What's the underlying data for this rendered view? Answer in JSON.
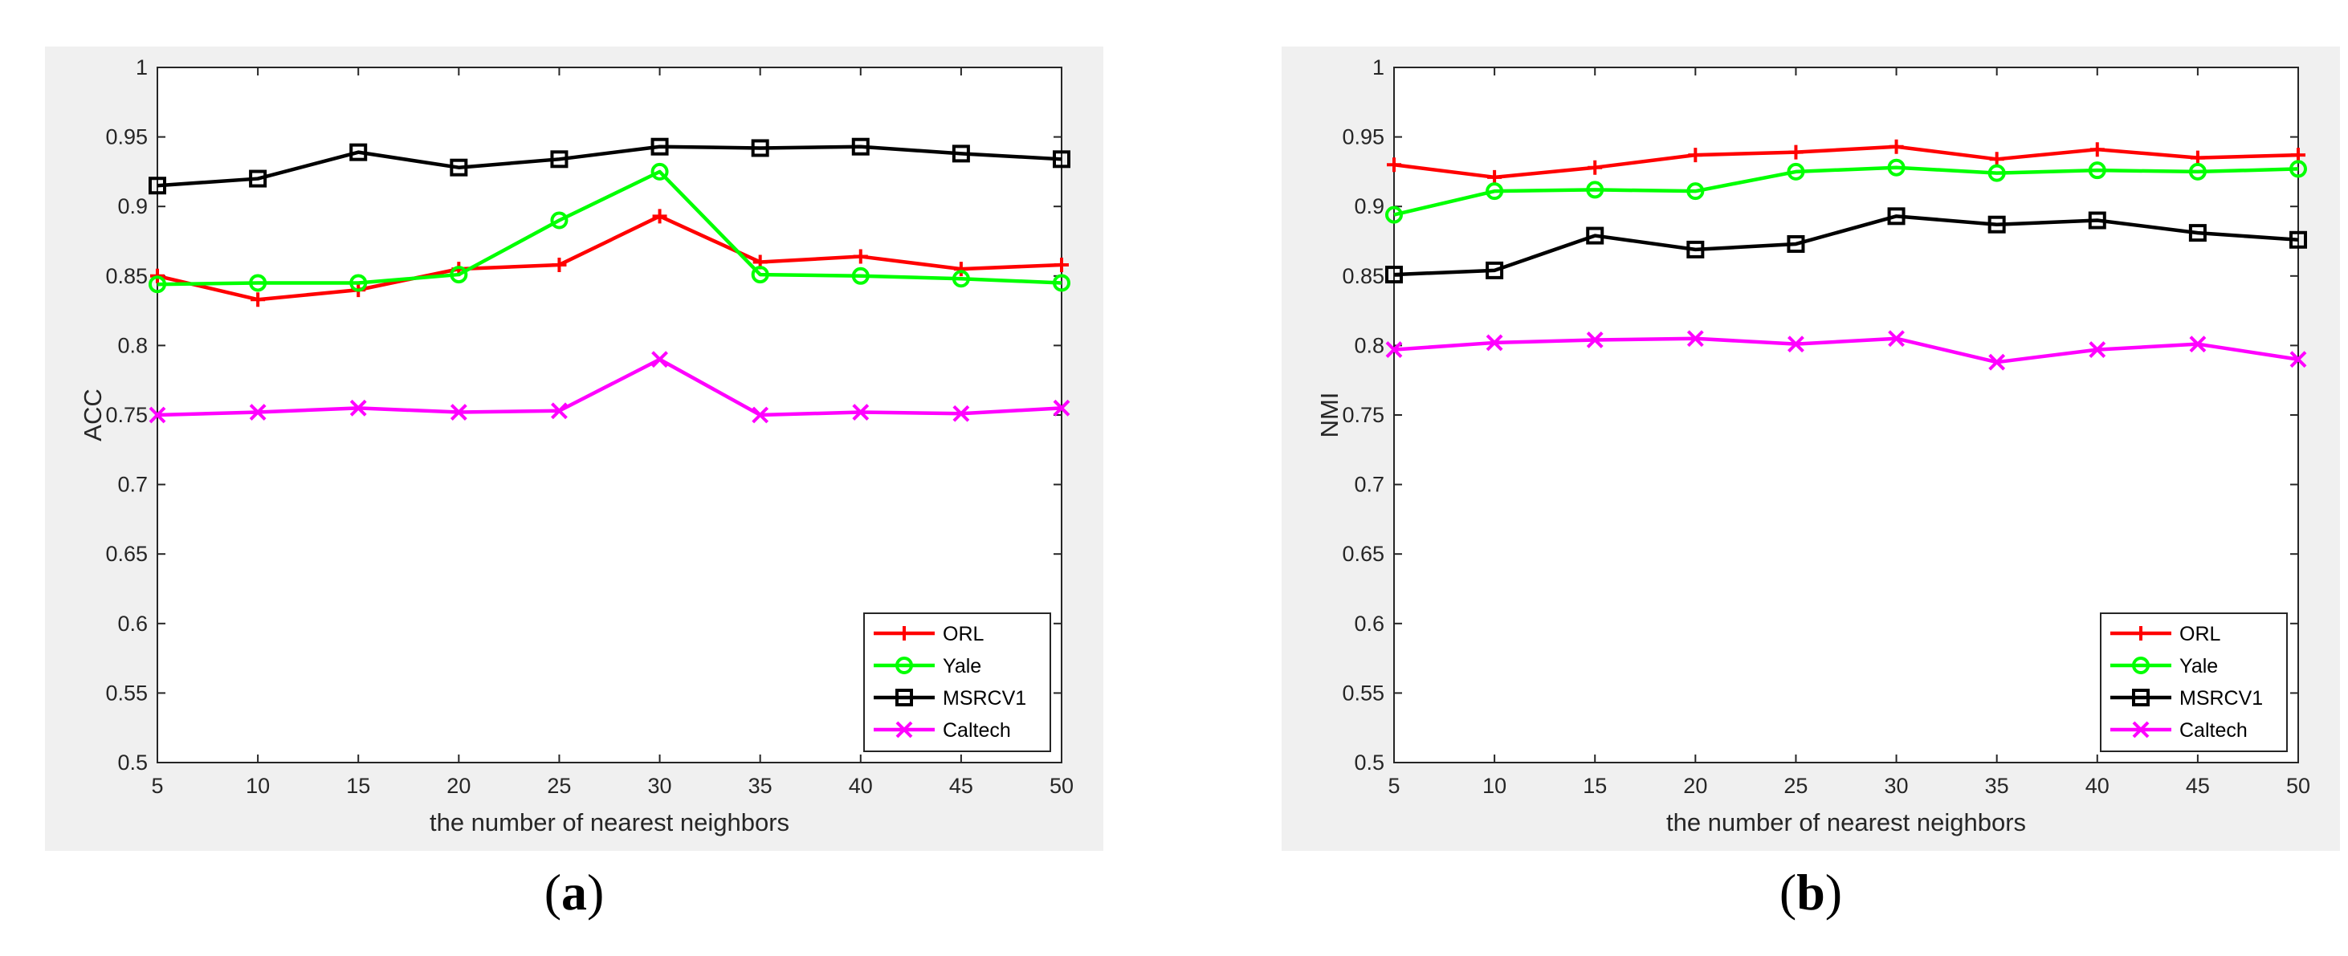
{
  "chart_data": [
    {
      "type": "line",
      "caption_letter": "a",
      "xlabel": "the number of nearest neighbors",
      "ylabel": "ACC",
      "xlim": [
        5,
        50
      ],
      "ylim": [
        0.5,
        1
      ],
      "x_ticks": [
        5,
        10,
        15,
        20,
        25,
        30,
        35,
        40,
        45,
        50
      ],
      "y_ticks": [
        "0.5",
        "0.55",
        "0.6",
        "0.65",
        "0.7",
        "0.75",
        "0.8",
        "0.85",
        "0.9",
        "0.95",
        "1"
      ],
      "grid": false,
      "legend_position": "bottom-right",
      "x": [
        5,
        10,
        15,
        20,
        25,
        30,
        35,
        40,
        45,
        50
      ],
      "series": [
        {
          "name": "ORL",
          "color": "#ff0000",
          "marker": "plus",
          "values": [
            0.85,
            0.833,
            0.84,
            0.855,
            0.858,
            0.893,
            0.86,
            0.864,
            0.855,
            0.858
          ]
        },
        {
          "name": "Yale",
          "color": "#00ff00",
          "marker": "circle",
          "values": [
            0.844,
            0.845,
            0.845,
            0.851,
            0.89,
            0.925,
            0.851,
            0.85,
            0.848,
            0.845
          ]
        },
        {
          "name": "MSRCV1",
          "color": "#000000",
          "marker": "square",
          "values": [
            0.915,
            0.92,
            0.939,
            0.928,
            0.934,
            0.943,
            0.942,
            0.943,
            0.938,
            0.934
          ]
        },
        {
          "name": "Caltech",
          "color": "#ff00ff",
          "marker": "x",
          "values": [
            0.75,
            0.752,
            0.755,
            0.752,
            0.753,
            0.79,
            0.75,
            0.752,
            0.751,
            0.755
          ]
        }
      ]
    },
    {
      "type": "line",
      "caption_letter": "b",
      "xlabel": "the number of nearest neighbors",
      "ylabel": "NMI",
      "xlim": [
        5,
        50
      ],
      "ylim": [
        0.5,
        1
      ],
      "x_ticks": [
        5,
        10,
        15,
        20,
        25,
        30,
        35,
        40,
        45,
        50
      ],
      "y_ticks": [
        "0.5",
        "0.55",
        "0.6",
        "0.65",
        "0.7",
        "0.75",
        "0.8",
        "0.85",
        "0.9",
        "0.95",
        "1"
      ],
      "grid": false,
      "legend_position": "bottom-right",
      "x": [
        5,
        10,
        15,
        20,
        25,
        30,
        35,
        40,
        45,
        50
      ],
      "series": [
        {
          "name": "ORL",
          "color": "#ff0000",
          "marker": "plus",
          "values": [
            0.93,
            0.921,
            0.928,
            0.937,
            0.939,
            0.943,
            0.934,
            0.941,
            0.935,
            0.937
          ]
        },
        {
          "name": "Yale",
          "color": "#00ff00",
          "marker": "circle",
          "values": [
            0.894,
            0.911,
            0.912,
            0.911,
            0.925,
            0.928,
            0.924,
            0.926,
            0.925,
            0.927
          ]
        },
        {
          "name": "MSRCV1",
          "color": "#000000",
          "marker": "square",
          "values": [
            0.851,
            0.854,
            0.879,
            0.869,
            0.873,
            0.893,
            0.887,
            0.89,
            0.881,
            0.876
          ]
        },
        {
          "name": "Caltech",
          "color": "#ff00ff",
          "marker": "x",
          "values": [
            0.797,
            0.802,
            0.804,
            0.805,
            0.801,
            0.805,
            0.788,
            0.797,
            0.801,
            0.79
          ]
        }
      ]
    }
  ]
}
